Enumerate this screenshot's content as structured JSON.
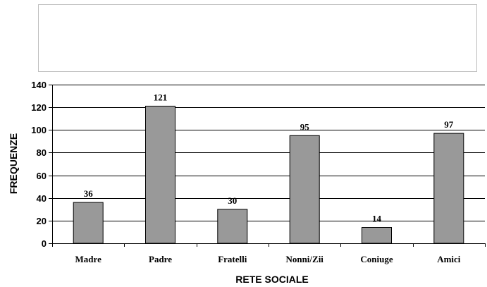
{
  "chart_data": {
    "type": "bar",
    "title": "",
    "xlabel": "RETE SOCIALE",
    "ylabel": "FREQUENZE",
    "categories": [
      "Madre",
      "Padre",
      "Fratelli",
      "Nonni/Zii",
      "Coniuge",
      "Amici"
    ],
    "values": [
      36,
      121,
      30,
      95,
      14,
      97
    ],
    "ylim": [
      0,
      140
    ],
    "yticks": [
      0,
      20,
      40,
      60,
      80,
      100,
      120,
      140
    ],
    "grid": true,
    "legend": "none",
    "colors": {
      "bar_fill": "#999999",
      "bar_stroke": "#000000",
      "grid": "#000000",
      "legend_box_stroke": "#bfbfbf"
    }
  }
}
